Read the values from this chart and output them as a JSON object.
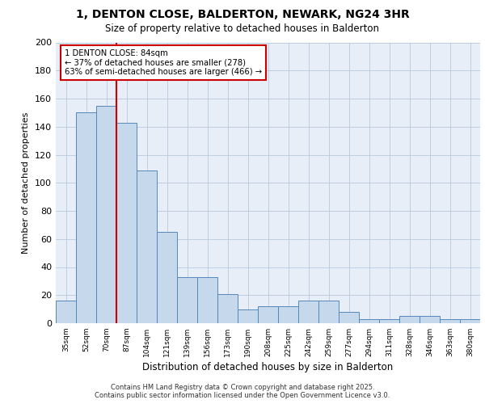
{
  "title1": "1, DENTON CLOSE, BALDERTON, NEWARK, NG24 3HR",
  "title2": "Size of property relative to detached houses in Balderton",
  "xlabel": "Distribution of detached houses by size in Balderton",
  "ylabel": "Number of detached properties",
  "bin_labels": [
    "35sqm",
    "52sqm",
    "70sqm",
    "87sqm",
    "104sqm",
    "121sqm",
    "139sqm",
    "156sqm",
    "173sqm",
    "190sqm",
    "208sqm",
    "225sqm",
    "242sqm",
    "259sqm",
    "277sqm",
    "294sqm",
    "311sqm",
    "328sqm",
    "346sqm",
    "363sqm",
    "380sqm"
  ],
  "bar_values": [
    16,
    150,
    155,
    143,
    109,
    65,
    33,
    33,
    21,
    10,
    12,
    12,
    16,
    16,
    8,
    3,
    3,
    5,
    5,
    3,
    3
  ],
  "bar_color": "#c5d8ec",
  "bar_edge_color": "#5588bb",
  "vline_x": 2.5,
  "vline_color": "#cc0000",
  "annotation_text": "1 DENTON CLOSE: 84sqm\n← 37% of detached houses are smaller (278)\n63% of semi-detached houses are larger (466) →",
  "annotation_facecolor": "white",
  "annotation_edgecolor": "#cc0000",
  "ylim": [
    0,
    200
  ],
  "yticks": [
    0,
    20,
    40,
    60,
    80,
    100,
    120,
    140,
    160,
    180,
    200
  ],
  "bg_color": "#e8eef8",
  "grid_color": "#b8c8dc",
  "footer_text": "Contains HM Land Registry data © Crown copyright and database right 2025.\nContains public sector information licensed under the Open Government Licence v3.0."
}
